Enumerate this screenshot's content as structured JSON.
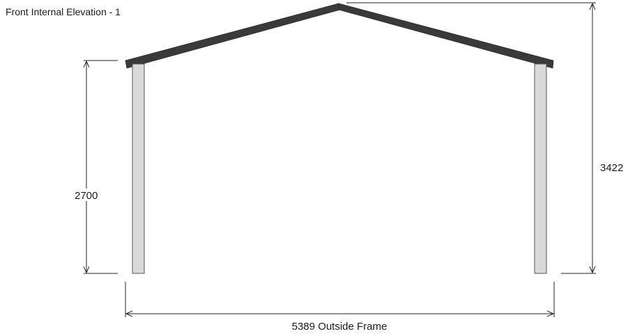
{
  "title": "Front Internal Elevation - 1",
  "dimensions": {
    "wall_height": "2700",
    "ridge_height": "3422",
    "width": "5389 Outside Frame"
  },
  "colors": {
    "roof": "#3a3a3a",
    "post_fill": "#d9d9d9",
    "post_stroke": "#555555",
    "dimension_line": "#222222"
  }
}
